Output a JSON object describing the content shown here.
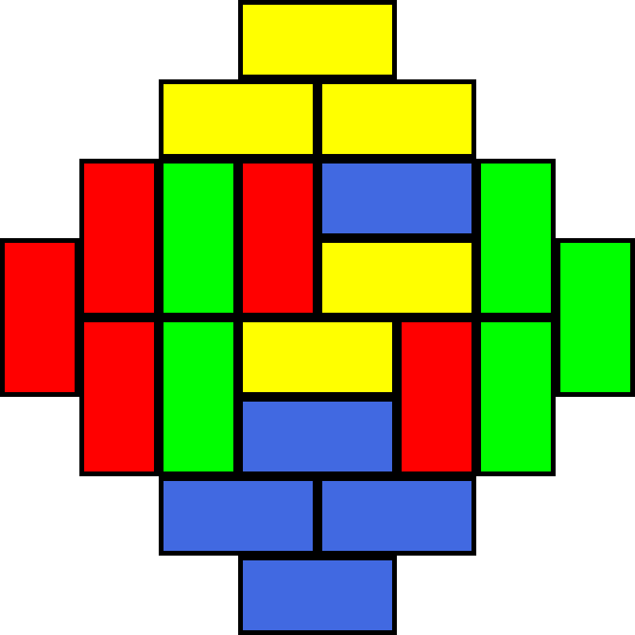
{
  "board": {
    "grid_size": 8,
    "colors": {
      "yellow": "#ffff00",
      "red": "#ff0000",
      "green": "#00ff00",
      "blue": "#4169e1"
    },
    "dominoes": [
      {
        "id": "yellow-top",
        "color": "yellow",
        "cells": [
          [
            0,
            3
          ],
          [
            0,
            4
          ]
        ]
      },
      {
        "id": "yellow-row1-left",
        "color": "yellow",
        "cells": [
          [
            1,
            2
          ],
          [
            1,
            3
          ]
        ]
      },
      {
        "id": "yellow-row1-right",
        "color": "yellow",
        "cells": [
          [
            1,
            4
          ],
          [
            1,
            5
          ]
        ]
      },
      {
        "id": "red-left-edge",
        "color": "red",
        "cells": [
          [
            3,
            0
          ],
          [
            4,
            0
          ]
        ]
      },
      {
        "id": "red-col1-upper",
        "color": "red",
        "cells": [
          [
            2,
            1
          ],
          [
            3,
            1
          ]
        ]
      },
      {
        "id": "green-col2-upper",
        "color": "green",
        "cells": [
          [
            2,
            2
          ],
          [
            3,
            2
          ]
        ]
      },
      {
        "id": "red-col3-upper",
        "color": "red",
        "cells": [
          [
            2,
            3
          ],
          [
            3,
            3
          ]
        ]
      },
      {
        "id": "blue-row2-right",
        "color": "blue",
        "cells": [
          [
            2,
            4
          ],
          [
            2,
            5
          ]
        ]
      },
      {
        "id": "green-col6-upper",
        "color": "green",
        "cells": [
          [
            2,
            6
          ],
          [
            3,
            6
          ]
        ]
      },
      {
        "id": "yellow-row3-right",
        "color": "yellow",
        "cells": [
          [
            3,
            4
          ],
          [
            3,
            5
          ]
        ]
      },
      {
        "id": "green-right-edge",
        "color": "green",
        "cells": [
          [
            3,
            7
          ],
          [
            4,
            7
          ]
        ]
      },
      {
        "id": "red-col1-lower",
        "color": "red",
        "cells": [
          [
            4,
            1
          ],
          [
            5,
            1
          ]
        ]
      },
      {
        "id": "green-col2-lower",
        "color": "green",
        "cells": [
          [
            4,
            2
          ],
          [
            5,
            2
          ]
        ]
      },
      {
        "id": "yellow-row4-center",
        "color": "yellow",
        "cells": [
          [
            4,
            3
          ],
          [
            4,
            4
          ]
        ]
      },
      {
        "id": "red-col5-lower",
        "color": "red",
        "cells": [
          [
            4,
            5
          ],
          [
            5,
            5
          ]
        ]
      },
      {
        "id": "green-col6-lower",
        "color": "green",
        "cells": [
          [
            4,
            6
          ],
          [
            5,
            6
          ]
        ]
      },
      {
        "id": "blue-row5-center",
        "color": "blue",
        "cells": [
          [
            5,
            3
          ],
          [
            5,
            4
          ]
        ]
      },
      {
        "id": "blue-row6-left",
        "color": "blue",
        "cells": [
          [
            6,
            2
          ],
          [
            6,
            3
          ]
        ]
      },
      {
        "id": "blue-row6-right",
        "color": "blue",
        "cells": [
          [
            6,
            4
          ],
          [
            6,
            5
          ]
        ]
      },
      {
        "id": "blue-bottom",
        "color": "blue",
        "cells": [
          [
            7,
            3
          ],
          [
            7,
            4
          ]
        ]
      }
    ]
  }
}
